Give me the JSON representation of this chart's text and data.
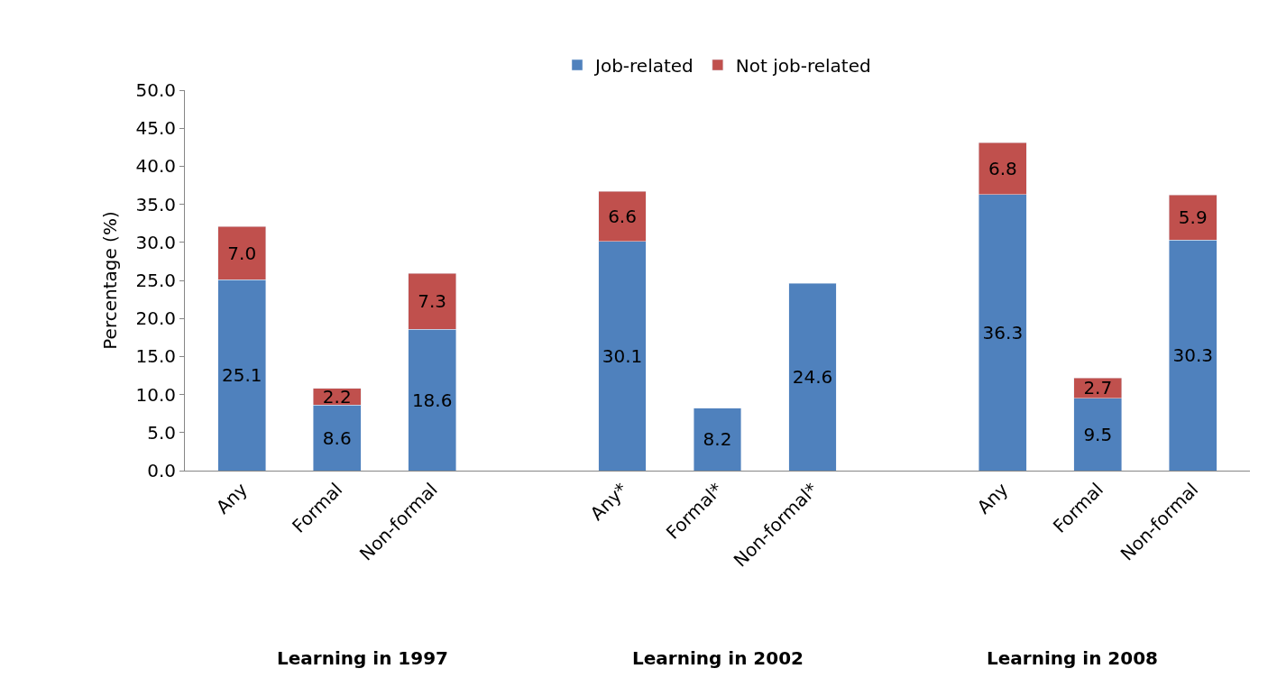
{
  "chart_data": {
    "type": "bar",
    "stacked": true,
    "ylabel": "Percentage (%)",
    "categories": [
      "Any",
      "Formal",
      "Non-formal",
      null,
      "Any*",
      "Formal*",
      "Non-formal*",
      null,
      "Any",
      "Formal",
      "Non-formal"
    ],
    "series": [
      {
        "name": "Job-related",
        "color": "#4f81bd",
        "values": [
          25.1,
          8.6,
          18.6,
          null,
          30.1,
          8.2,
          24.6,
          null,
          36.3,
          9.5,
          30.3
        ],
        "value_labels": [
          "25.1",
          "8.6",
          "18.6",
          null,
          "30.1",
          "8.2",
          "24.6",
          null,
          "36.3",
          "9.5",
          "30.3"
        ]
      },
      {
        "name": "Not job-related",
        "color": "#c0504d",
        "values": [
          7.0,
          2.2,
          7.3,
          null,
          6.6,
          null,
          null,
          null,
          6.8,
          2.7,
          5.9
        ],
        "value_labels": [
          "7.0",
          "2.2",
          "7.3",
          null,
          "6.6",
          null,
          null,
          null,
          "6.8",
          "2.7",
          "5.9"
        ]
      }
    ],
    "ylim": [
      0,
      50
    ],
    "yticks": [
      {
        "value": 0,
        "label": "0.0"
      },
      {
        "value": 5,
        "label": "5.0"
      },
      {
        "value": 10,
        "label": "10.0"
      },
      {
        "value": 15,
        "label": "15.0"
      },
      {
        "value": 20,
        "label": "20.0"
      },
      {
        "value": 25,
        "label": "25.0"
      },
      {
        "value": 30,
        "label": "30.0"
      },
      {
        "value": 35,
        "label": "35.0"
      },
      {
        "value": 40,
        "label": "40.0"
      },
      {
        "value": 45,
        "label": "45.0"
      },
      {
        "value": 50,
        "label": "50.0"
      }
    ],
    "annotations": [
      "Learning in 1997",
      "Learning in 2002",
      "Learning in 2008"
    ],
    "legend": "top"
  }
}
